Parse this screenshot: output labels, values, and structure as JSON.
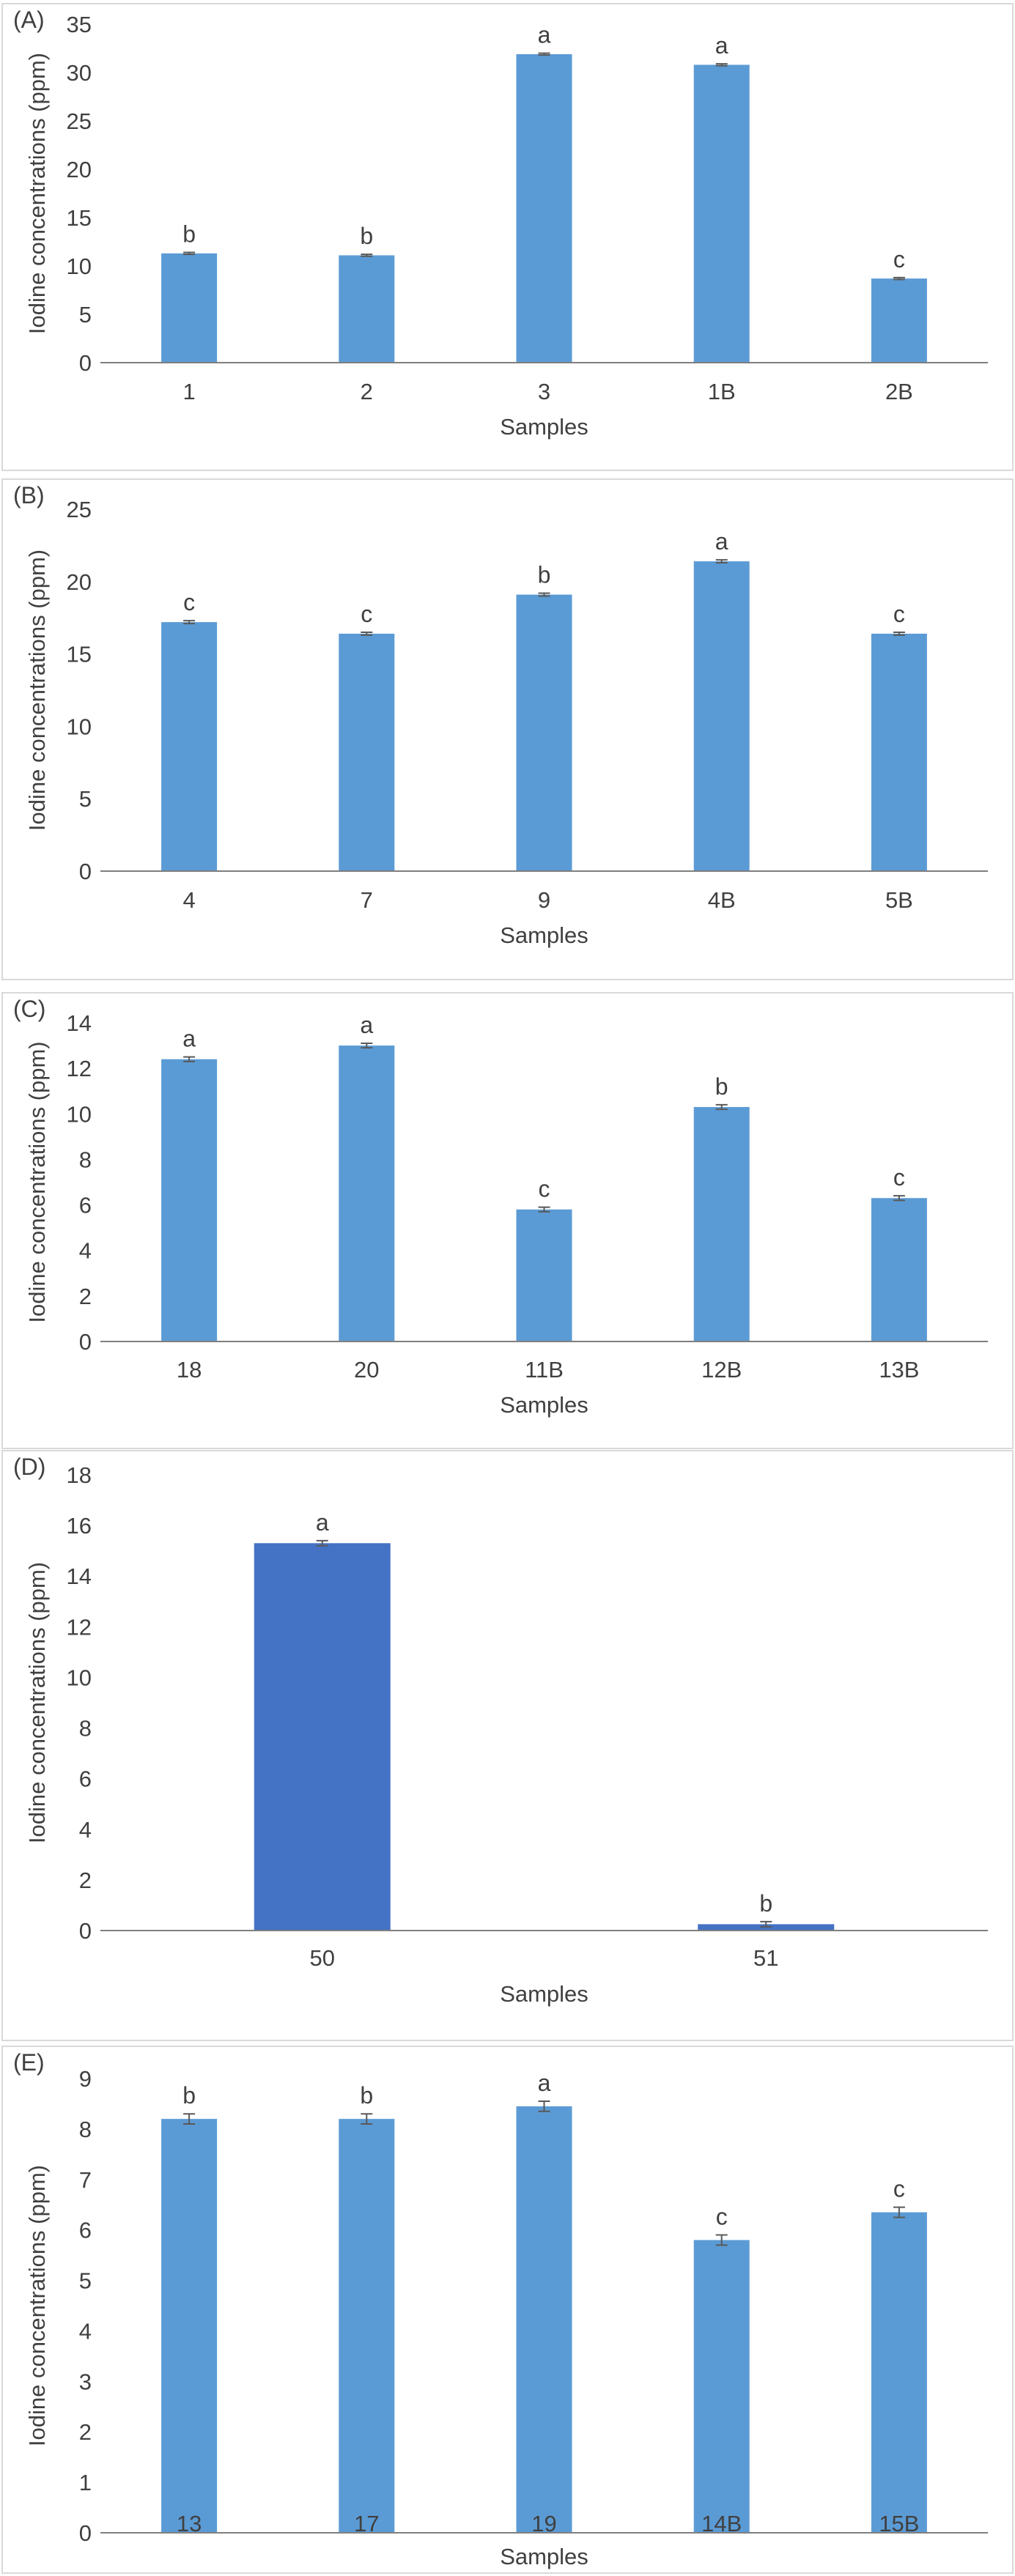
{
  "figure": {
    "colors": {
      "bar": "#5b9bd5",
      "bar_dark": "#4472c4",
      "axis": "#7f7f7f",
      "text": "#404040",
      "frame": "#d9d9d9",
      "error": "#595959"
    }
  },
  "chart_data": [
    {
      "type": "bar",
      "panel_label": "(A)",
      "title": "",
      "xlabel": "Samples",
      "ylabel": "Iodine concentrations (ppm)",
      "ylim": [
        0,
        35
      ],
      "yticks": [
        0,
        5,
        10,
        15,
        20,
        25,
        30,
        35
      ],
      "categories": [
        "1",
        "2",
        "3",
        "1B",
        "2B"
      ],
      "values": [
        11.3,
        11.1,
        31.9,
        30.8,
        8.7
      ],
      "errors": [
        0.1,
        0.1,
        0.1,
        0.1,
        0.1
      ],
      "letters": [
        "b",
        "b",
        "a",
        "a",
        "c"
      ],
      "grid": false,
      "bar_color": "#5b9bd5"
    },
    {
      "type": "bar",
      "panel_label": "(B)",
      "title": "",
      "xlabel": "Samples",
      "ylabel": "Iodine concentrations (ppm)",
      "ylim": [
        0,
        25
      ],
      "yticks": [
        0,
        5,
        10,
        15,
        20,
        25
      ],
      "categories": [
        "4",
        "7",
        "9",
        "4B",
        "5B"
      ],
      "values": [
        17.2,
        16.4,
        19.1,
        21.4,
        16.4
      ],
      "errors": [
        0.1,
        0.1,
        0.1,
        0.1,
        0.1
      ],
      "letters": [
        "c",
        "c",
        "b",
        "a",
        "c"
      ],
      "grid": false,
      "bar_color": "#5b9bd5"
    },
    {
      "type": "bar",
      "panel_label": "(C)",
      "title": "",
      "xlabel": "Samples",
      "ylabel": "Iodine concentrations (ppm)",
      "ylim": [
        0,
        14
      ],
      "yticks": [
        0,
        2,
        4,
        6,
        8,
        10,
        12,
        14
      ],
      "categories": [
        "18",
        "20",
        "11B",
        "12B",
        "13B"
      ],
      "values": [
        12.4,
        13.0,
        5.8,
        10.3,
        6.3
      ],
      "errors": [
        0.1,
        0.1,
        0.1,
        0.1,
        0.1
      ],
      "letters": [
        "a",
        "a",
        "c",
        "b",
        "c"
      ],
      "grid": false,
      "bar_color": "#5b9bd5"
    },
    {
      "type": "bar",
      "panel_label": "(D)",
      "title": "",
      "xlabel": "Samples",
      "ylabel": "Iodine concentrations (ppm)",
      "ylim": [
        0,
        18
      ],
      "yticks": [
        0,
        2,
        4,
        6,
        8,
        10,
        12,
        14,
        16,
        18
      ],
      "categories": [
        "50",
        "51"
      ],
      "values": [
        15.3,
        0.25
      ],
      "errors": [
        0.1,
        0.1
      ],
      "letters": [
        "a",
        "b"
      ],
      "grid": false,
      "bar_color": "#4472c4"
    },
    {
      "type": "bar",
      "panel_label": "(E)",
      "title": "",
      "xlabel": "Samples",
      "ylabel": "Iodine concentrations (ppm)",
      "ylim": [
        0,
        9
      ],
      "yticks": [
        0,
        1,
        2,
        3,
        4,
        5,
        6,
        7,
        8,
        9
      ],
      "categories": [
        "13",
        "17",
        "19",
        "14B",
        "15B"
      ],
      "values": [
        8.2,
        8.2,
        8.45,
        5.8,
        6.35
      ],
      "errors": [
        0.1,
        0.1,
        0.1,
        0.1,
        0.1
      ],
      "letters": [
        "b",
        "b",
        "a",
        "c",
        "c"
      ],
      "grid": false,
      "bar_color": "#5b9bd5"
    }
  ]
}
